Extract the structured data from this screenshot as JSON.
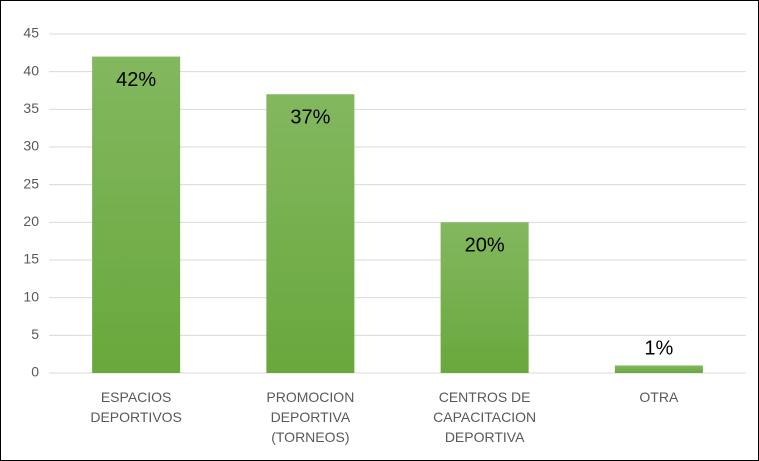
{
  "chart_data": {
    "type": "bar",
    "categories": [
      "ESPACIOS DEPORTIVOS",
      "PROMOCION DEPORTIVA (TORNEOS)",
      "CENTROS DE CAPACITACION DEPORTIVA",
      "OTRA"
    ],
    "values": [
      42,
      37,
      20,
      1
    ],
    "value_labels": [
      "42%",
      "37%",
      "20%",
      "1%"
    ],
    "color": "#68a83c",
    "ylim": [
      0,
      45
    ],
    "yticks": [
      0,
      5,
      10,
      15,
      20,
      25,
      30,
      35,
      40,
      45
    ],
    "grid": true
  }
}
